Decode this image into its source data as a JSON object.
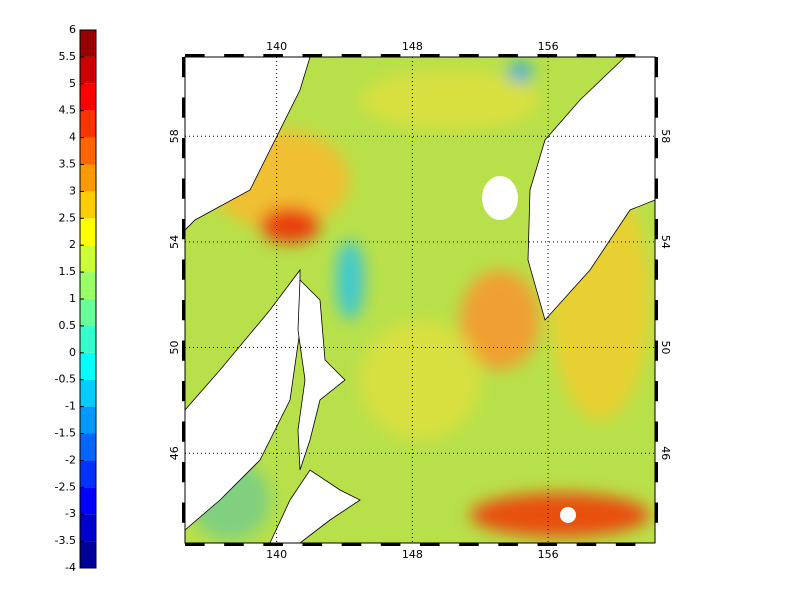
{
  "colorbar": {
    "lim": [
      -4,
      6
    ],
    "ticks": [
      -4,
      -3.5,
      -3,
      -2.5,
      -2,
      -1.5,
      -1,
      -0.5,
      0,
      0.5,
      1,
      1.5,
      2,
      2.5,
      3,
      3.5,
      4,
      4.5,
      5,
      5.5,
      6
    ]
  },
  "map": {
    "xlim": [
      134.6,
      162.3
    ],
    "ylim": [
      42.6,
      61
    ],
    "xticks": [
      140,
      148,
      156
    ],
    "yticks": [
      46,
      50,
      54,
      58
    ],
    "grid": true
  }
}
